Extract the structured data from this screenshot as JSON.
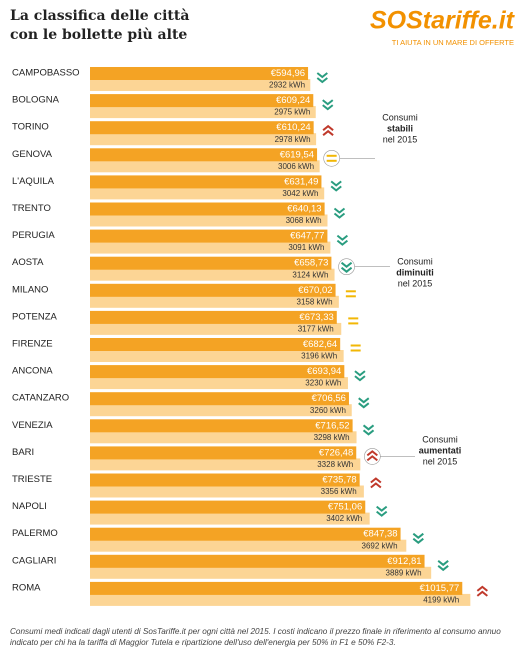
{
  "header": {
    "title": [
      "La classifica delle città",
      "con le bollette più alte"
    ],
    "logo": "SOStariffe.it",
    "tagline": "TI AIUTA IN UN MARE DI OFFERTE"
  },
  "chart_data": {
    "type": "bar",
    "orientation": "horizontal",
    "categories": [
      "CAMPOBASSO",
      "BOLOGNA",
      "TORINO",
      "GENOVA",
      "L'AQUILA",
      "TRENTO",
      "PERUGIA",
      "AOSTA",
      "MILANO",
      "POTENZA",
      "FIRENZE",
      "ANCONA",
      "CATANZARO",
      "VENEZIA",
      "BARI",
      "TRIESTE",
      "NAPOLI",
      "PALERMO",
      "CAGLIARI",
      "ROMA"
    ],
    "series": [
      {
        "name": "costo",
        "color": "#f4a324",
        "values": [
          594.96,
          609.24,
          610.24,
          619.54,
          631.49,
          640.13,
          647.77,
          658.73,
          670.02,
          673.33,
          682.64,
          693.94,
          706.56,
          716.52,
          726.48,
          735.78,
          751.06,
          847.38,
          912.81,
          1015.77
        ],
        "value_labels": [
          "€594,96",
          "€609,24",
          "€610,24",
          "€619,54",
          "€631,49",
          "€640,13",
          "€647,77",
          "€658,73",
          "€670,02",
          "€673,33",
          "€682,64",
          "€693,94",
          "€706,56",
          "€716,52",
          "€726,48",
          "€735,78",
          "€751,06",
          "€847,38",
          "€912,81",
          "€1015,77"
        ]
      },
      {
        "name": "consumo",
        "color": "#fcd595",
        "values": [
          2932,
          2975,
          2978,
          3006,
          3042,
          3068,
          3091,
          3124,
          3158,
          3177,
          3196,
          3230,
          3260,
          3298,
          3328,
          3356,
          3402,
          3692,
          3889,
          4199
        ],
        "value_labels": [
          "2932 kWh",
          "2975 kWh",
          "2978 kWh",
          "3006 kWh",
          "3042 kWh",
          "3068 kWh",
          "3091 kWh",
          "3124 kWh",
          "3158 kWh",
          "3177 kWh",
          "3196 kWh",
          "3230 kWh",
          "3260 kWh",
          "3298 kWh",
          "3328 kWh",
          "3356 kWh",
          "3402 kWh",
          "3692 kWh",
          "3889 kWh",
          "4199 kWh"
        ]
      }
    ],
    "trend": [
      "down",
      "down",
      "up",
      "equal",
      "down",
      "down",
      "down",
      "down",
      "equal",
      "equal",
      "equal",
      "down",
      "down",
      "down",
      "up",
      "up",
      "down",
      "down",
      "down",
      "up"
    ],
    "trend_colors": {
      "down": "#2a9d80",
      "up": "#c0392b",
      "equal": "#f2b705"
    },
    "annotations": [
      [
        "Consumi",
        "stabili",
        "nel 2015"
      ],
      [
        "Consumi",
        "diminuiti",
        "nel 2015"
      ],
      [
        "Consumi",
        "aumentati",
        "nel 2015"
      ]
    ]
  },
  "footer": "Consumi medi indicati dagli utenti di SosTariffe.it per ogni città nel 2015. I costi indicano il prezzo finale in riferimento al consumo annuo indicato per chi ha la tariffa di Maggior Tutela e ripartizione dell'uso dell'energia per 50% in F1 e 50% F2-3."
}
